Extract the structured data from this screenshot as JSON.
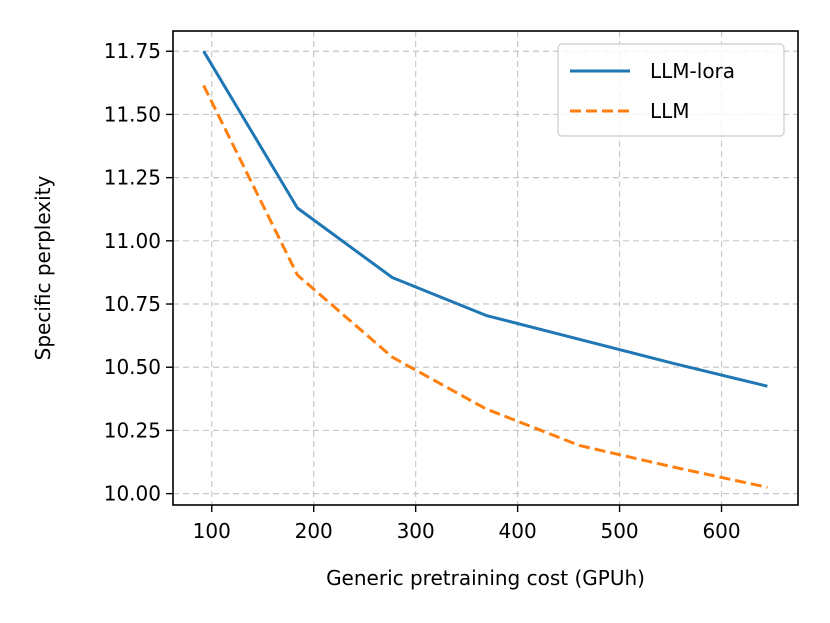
{
  "chart_data": {
    "type": "line",
    "title": "",
    "xlabel": "Generic pretraining cost (GPUh)",
    "ylabel": "Specific perplexity",
    "xlim": [
      62,
      675
    ],
    "ylim": [
      9.955,
      11.83
    ],
    "xticks": [
      100,
      200,
      300,
      400,
      500,
      600
    ],
    "yticks": [
      10.0,
      10.25,
      10.5,
      10.75,
      11.0,
      11.25,
      11.5,
      11.75
    ],
    "xtick_labels": [
      "100",
      "200",
      "300",
      "400",
      "500",
      "600"
    ],
    "ytick_labels": [
      "10.00",
      "10.25",
      "10.50",
      "10.75",
      "11.00",
      "11.25",
      "11.50",
      "11.75"
    ],
    "grid": true,
    "legend_position": "top-right",
    "series": [
      {
        "name": "LLM-lora",
        "color": "#1f77b4",
        "style": "solid",
        "x": [
          92,
          184,
          277,
          369,
          461,
          553,
          645
        ],
        "y": [
          11.75,
          11.13,
          10.855,
          10.705,
          10.61,
          10.515,
          10.425
        ]
      },
      {
        "name": "LLM",
        "color": "#ff7f0e",
        "style": "dashed",
        "x": [
          92,
          184,
          277,
          369,
          461,
          553,
          645
        ],
        "y": [
          11.615,
          10.865,
          10.54,
          10.335,
          10.19,
          10.105,
          10.025
        ]
      }
    ]
  }
}
